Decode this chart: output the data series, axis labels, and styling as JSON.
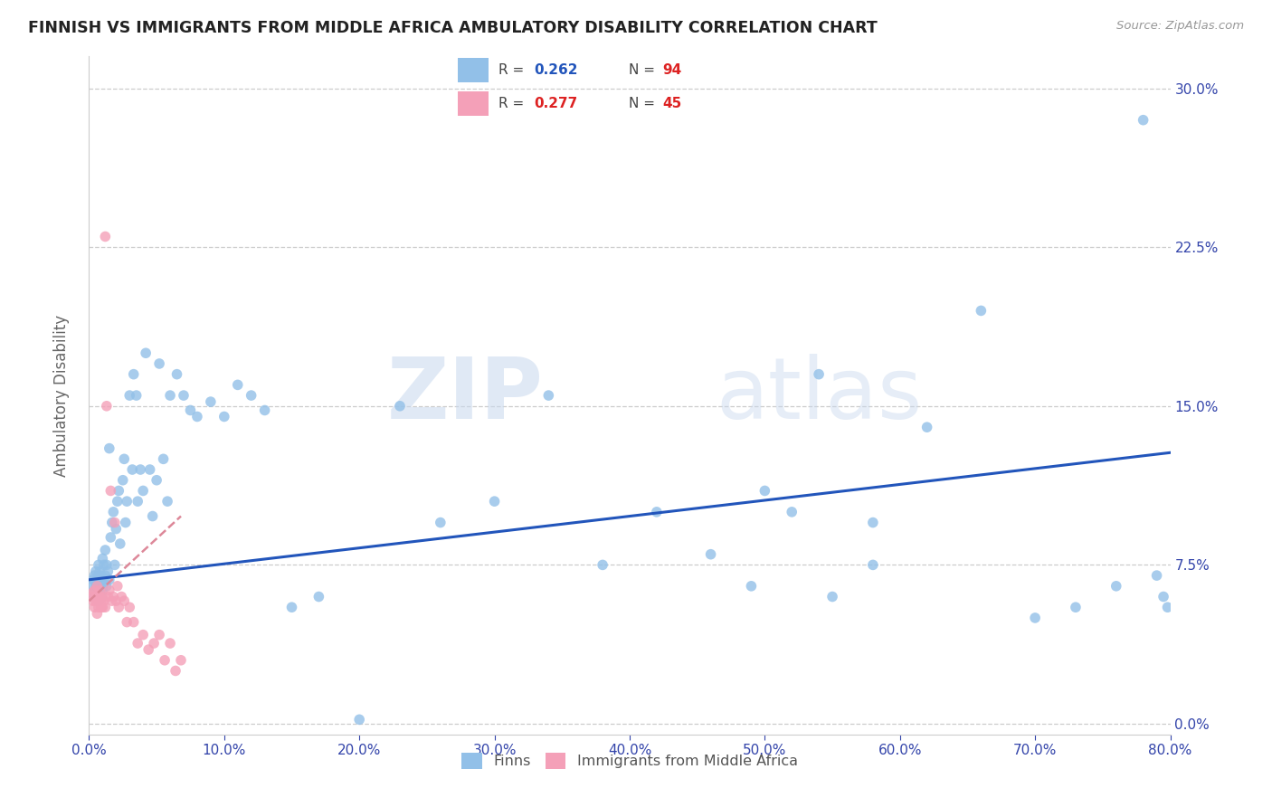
{
  "title": "FINNISH VS IMMIGRANTS FROM MIDDLE AFRICA AMBULATORY DISABILITY CORRELATION CHART",
  "source": "Source: ZipAtlas.com",
  "ylabel": "Ambulatory Disability",
  "xlim": [
    0.0,
    0.8
  ],
  "ylim": [
    -0.005,
    0.315
  ],
  "watermark": "ZIPatlas",
  "finn_color": "#92c0e8",
  "imm_color": "#f4a0b8",
  "finn_line_color": "#2255bb",
  "imm_line_color": "#dd8899",
  "grid_color": "#cccccc",
  "background_color": "#ffffff",
  "finn_r_val_color": "#2255bb",
  "finn_n_val_color": "#dd2222",
  "imm_r_val_color": "#dd2222",
  "imm_n_val_color": "#dd2222",
  "tick_color": "#3344aa",
  "right_tick_color": "#3344aa",
  "finns_x": [
    0.002,
    0.003,
    0.003,
    0.004,
    0.004,
    0.005,
    0.005,
    0.005,
    0.005,
    0.006,
    0.006,
    0.006,
    0.007,
    0.007,
    0.007,
    0.008,
    0.008,
    0.008,
    0.009,
    0.009,
    0.01,
    0.01,
    0.01,
    0.011,
    0.011,
    0.012,
    0.012,
    0.013,
    0.013,
    0.014,
    0.015,
    0.015,
    0.016,
    0.017,
    0.018,
    0.019,
    0.02,
    0.021,
    0.022,
    0.023,
    0.025,
    0.026,
    0.027,
    0.028,
    0.03,
    0.032,
    0.033,
    0.035,
    0.036,
    0.038,
    0.04,
    0.042,
    0.045,
    0.047,
    0.05,
    0.052,
    0.055,
    0.058,
    0.06,
    0.065,
    0.07,
    0.075,
    0.08,
    0.09,
    0.1,
    0.11,
    0.12,
    0.13,
    0.15,
    0.17,
    0.2,
    0.23,
    0.26,
    0.3,
    0.34,
    0.38,
    0.42,
    0.46,
    0.5,
    0.54,
    0.58,
    0.62,
    0.66,
    0.7,
    0.73,
    0.76,
    0.78,
    0.79,
    0.795,
    0.798,
    0.49,
    0.52,
    0.55,
    0.58
  ],
  "finns_y": [
    0.065,
    0.068,
    0.06,
    0.07,
    0.062,
    0.065,
    0.06,
    0.063,
    0.072,
    0.065,
    0.068,
    0.062,
    0.07,
    0.058,
    0.075,
    0.065,
    0.072,
    0.068,
    0.07,
    0.06,
    0.065,
    0.078,
    0.063,
    0.075,
    0.068,
    0.07,
    0.082,
    0.075,
    0.065,
    0.072,
    0.13,
    0.068,
    0.088,
    0.095,
    0.1,
    0.075,
    0.092,
    0.105,
    0.11,
    0.085,
    0.115,
    0.125,
    0.095,
    0.105,
    0.155,
    0.12,
    0.165,
    0.155,
    0.105,
    0.12,
    0.11,
    0.175,
    0.12,
    0.098,
    0.115,
    0.17,
    0.125,
    0.105,
    0.155,
    0.165,
    0.155,
    0.148,
    0.145,
    0.152,
    0.145,
    0.16,
    0.155,
    0.148,
    0.055,
    0.06,
    0.002,
    0.15,
    0.095,
    0.105,
    0.155,
    0.075,
    0.1,
    0.08,
    0.11,
    0.165,
    0.095,
    0.14,
    0.195,
    0.05,
    0.055,
    0.065,
    0.285,
    0.07,
    0.06,
    0.055,
    0.065,
    0.1,
    0.06,
    0.075
  ],
  "imm_x": [
    0.002,
    0.003,
    0.003,
    0.004,
    0.004,
    0.005,
    0.005,
    0.006,
    0.006,
    0.007,
    0.007,
    0.007,
    0.008,
    0.008,
    0.009,
    0.009,
    0.01,
    0.01,
    0.011,
    0.012,
    0.012,
    0.013,
    0.014,
    0.015,
    0.016,
    0.017,
    0.018,
    0.019,
    0.02,
    0.021,
    0.022,
    0.024,
    0.026,
    0.028,
    0.03,
    0.033,
    0.036,
    0.04,
    0.044,
    0.048,
    0.052,
    0.056,
    0.06,
    0.064,
    0.068
  ],
  "imm_y": [
    0.06,
    0.058,
    0.062,
    0.055,
    0.063,
    0.058,
    0.06,
    0.065,
    0.052,
    0.06,
    0.055,
    0.058,
    0.063,
    0.06,
    0.055,
    0.058,
    0.06,
    0.055,
    0.058,
    0.055,
    0.23,
    0.15,
    0.06,
    0.063,
    0.11,
    0.058,
    0.06,
    0.095,
    0.058,
    0.065,
    0.055,
    0.06,
    0.058,
    0.048,
    0.055,
    0.048,
    0.038,
    0.042,
    0.035,
    0.038,
    0.042,
    0.03,
    0.038,
    0.025,
    0.03
  ],
  "finn_line_x": [
    0.0,
    0.8
  ],
  "finn_line_y": [
    0.068,
    0.128
  ],
  "imm_line_x": [
    0.0,
    0.068
  ],
  "imm_line_y": [
    0.058,
    0.098
  ]
}
